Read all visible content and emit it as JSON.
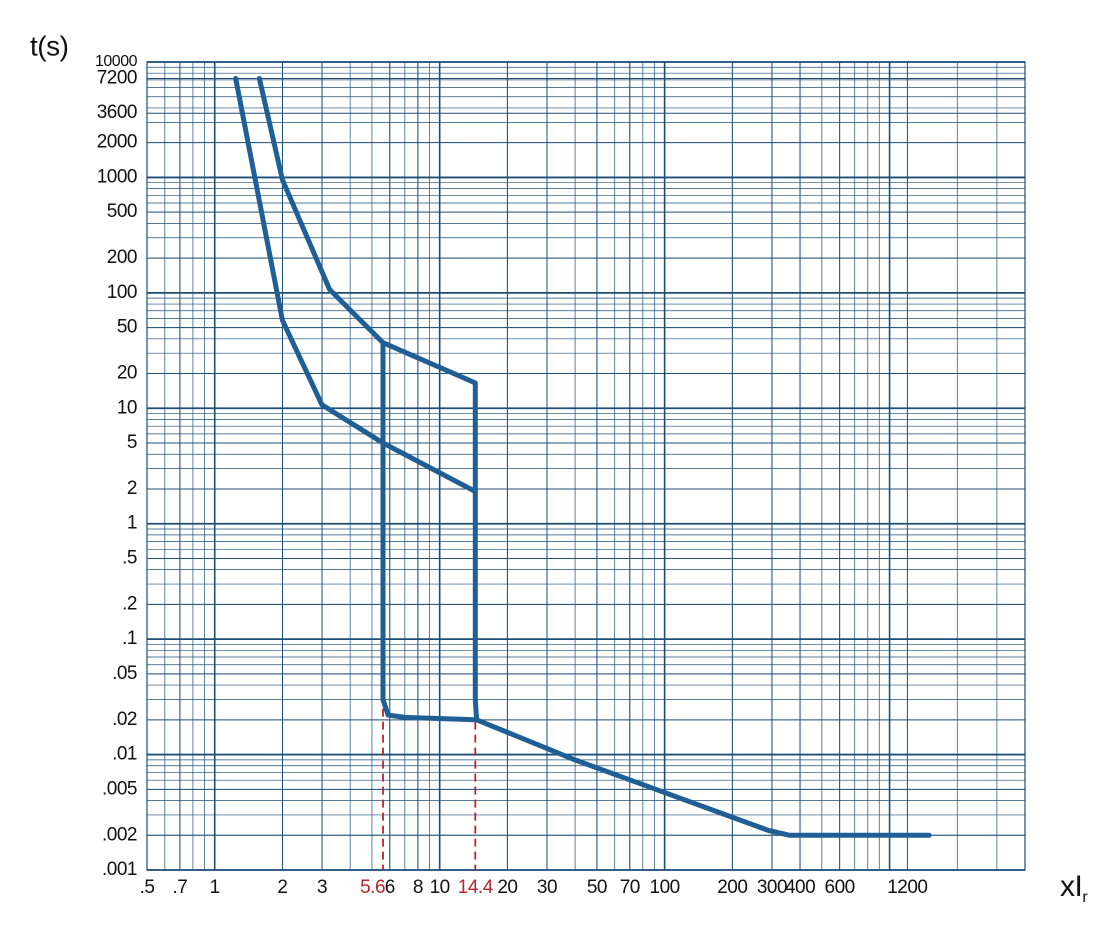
{
  "chart_data": {
    "type": "line",
    "y_label": "t(s)",
    "x_label": "xI",
    "x_label_sub": "r",
    "log_x": true,
    "log_y": true,
    "grid": true,
    "minor_grid": true,
    "xlim": [
      0.5,
      4000
    ],
    "ylim": [
      0.001,
      10000
    ],
    "xticks": [
      {
        "value": 0.5,
        "label": ".5"
      },
      {
        "value": 0.7,
        "label": ".7"
      },
      1,
      2,
      3,
      6,
      8,
      10,
      20,
      30,
      50,
      70,
      100,
      200,
      300,
      400,
      600,
      1200
    ],
    "yticks": [
      10000,
      7200,
      3600,
      2000,
      1000,
      500,
      200,
      100,
      50,
      20,
      10,
      5,
      2,
      1,
      {
        "value": 0.5,
        "label": ".5"
      },
      {
        "value": 0.2,
        "label": ".2"
      },
      {
        "value": 0.1,
        "label": ".1"
      },
      {
        "value": 0.05,
        "label": ".05"
      },
      {
        "value": 0.02,
        "label": ".02"
      },
      {
        "value": 0.01,
        "label": ".01"
      },
      {
        "value": 0.005,
        "label": ".005"
      },
      {
        "value": 0.002,
        "label": ".002"
      },
      {
        "value": 0.001,
        "label": ".001"
      }
    ],
    "markers": [
      5.6,
      14.4
    ],
    "marker_color": "#b3262e",
    "series": [
      {
        "color": "#1f5f95",
        "x": [
          1.58,
          2,
          3.24,
          5.6,
          14.4,
          14.4,
          14.6,
          40,
          290,
          360,
          1500
        ],
        "values": [
          7200,
          955,
          107,
          37,
          16.6,
          0.03,
          0.02,
          0.009,
          0.0022,
          0.002,
          0.002
        ]
      },
      {
        "color": "#1f5f95",
        "x": [
          1.24,
          2,
          3,
          5.6,
          14.4
        ],
        "values": [
          7200,
          58,
          10.7,
          5,
          1.9
        ]
      },
      {
        "color": "#1f5f95",
        "x": [
          5.6,
          5.6,
          5.9,
          7,
          14.4
        ],
        "values": [
          37,
          0.03,
          0.022,
          0.021,
          0.02
        ]
      }
    ]
  }
}
